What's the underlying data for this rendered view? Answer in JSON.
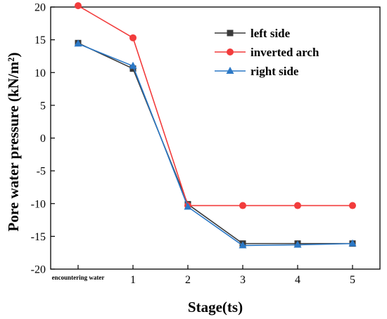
{
  "chart_data": {
    "type": "line",
    "categories": [
      "encountering water",
      "1",
      "2",
      "3",
      "4",
      "5"
    ],
    "x": [
      0,
      1,
      2,
      3,
      4,
      5
    ],
    "xlabel": "Stage(ts)",
    "ylabel": "Pore water pressure (kN/m²)",
    "ylim": [
      -20,
      20
    ],
    "yticks": [
      -20,
      -15,
      -10,
      -5,
      0,
      5,
      10,
      15,
      20
    ],
    "grid": false,
    "legend_position": "top-right",
    "series": [
      {
        "name": "left side",
        "marker": "square",
        "color": "#3a3a3a",
        "values": [
          14.5,
          10.6,
          -10.1,
          -16.1,
          -16.1,
          -16.1
        ]
      },
      {
        "name": "inverted arch",
        "marker": "circle",
        "color": "#f23c3c",
        "values": [
          20.2,
          15.3,
          -10.3,
          -10.3,
          -10.3,
          -10.3
        ]
      },
      {
        "name": "right side",
        "marker": "triangle",
        "color": "#2b78c6",
        "values": [
          14.4,
          11.0,
          -10.5,
          -16.4,
          -16.3,
          -16.1
        ]
      }
    ]
  }
}
